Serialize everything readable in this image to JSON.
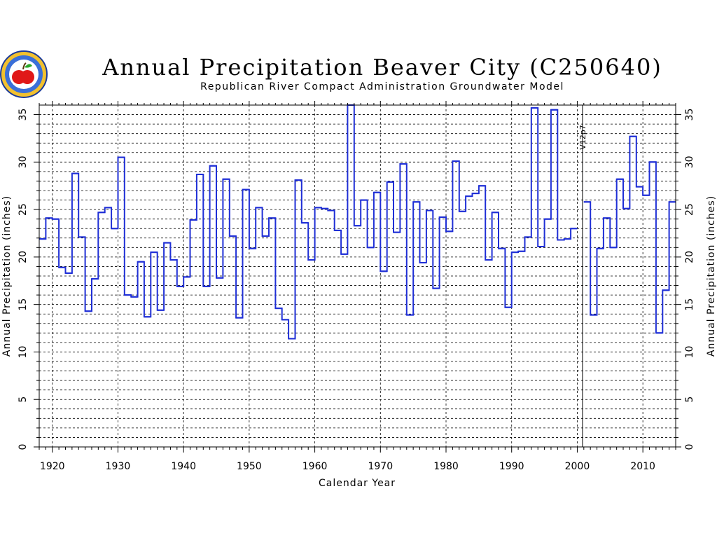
{
  "chart_data": {
    "type": "line",
    "step": true,
    "title": "Annual Precipitation Beaver City (C250640)",
    "subtitle": "Republican River Compact Administration Groundwater Model",
    "xlabel": "Calendar Year",
    "ylabel": "Annual Precipitation (inches)",
    "xlim": [
      1918,
      2015
    ],
    "ylim": [
      0,
      36
    ],
    "x_ticks": [
      1920,
      1930,
      1940,
      1950,
      1960,
      1970,
      1980,
      1990,
      2000,
      2010
    ],
    "y_ticks": [
      0,
      5,
      10,
      15,
      20,
      25,
      30,
      35
    ],
    "grid": true,
    "line_color": "#1f2fd6",
    "vline": {
      "x": 2000.8,
      "label": "V12p7"
    },
    "series": [
      {
        "x": [
          1918,
          1919,
          1920,
          1921,
          1922,
          1923,
          1924,
          1925,
          1926,
          1927,
          1928,
          1929,
          1930,
          1931,
          1932,
          1933,
          1934,
          1935,
          1936,
          1937,
          1938,
          1939,
          1940,
          1941,
          1942,
          1943,
          1944,
          1945,
          1946,
          1947,
          1948,
          1949,
          1950,
          1951,
          1952,
          1953,
          1954,
          1955,
          1956,
          1957,
          1958,
          1959,
          1960,
          1961,
          1962,
          1963,
          1964,
          1965,
          1966,
          1967,
          1968,
          1969,
          1970,
          1971,
          1972,
          1973,
          1974,
          1975,
          1976,
          1977,
          1978,
          1979,
          1980,
          1981,
          1982,
          1983,
          1984,
          1985,
          1986,
          1987,
          1988,
          1989,
          1990,
          1991,
          1992,
          1993,
          1994,
          1995,
          1996,
          1997,
          1998,
          1999,
          2000,
          2001,
          2002,
          2003,
          2004,
          2005,
          2006,
          2007,
          2008,
          2009,
          2010,
          2011,
          2012,
          2013,
          2014
        ],
        "values": [
          21.9,
          24.1,
          24.0,
          18.9,
          18.3,
          28.8,
          22.1,
          14.3,
          17.7,
          24.7,
          25.2,
          23.0,
          30.5,
          16.0,
          15.8,
          19.5,
          13.7,
          20.5,
          14.4,
          21.5,
          19.7,
          16.9,
          17.9,
          23.9,
          28.7,
          16.9,
          29.6,
          17.8,
          28.2,
          22.2,
          13.6,
          27.1,
          20.9,
          25.2,
          22.2,
          24.1,
          14.6,
          13.4,
          11.4,
          28.1,
          23.6,
          19.7,
          25.2,
          25.1,
          24.9,
          22.8,
          20.3,
          36.0,
          23.3,
          26.0,
          21.0,
          26.8,
          18.5,
          27.9,
          22.6,
          29.8,
          13.9,
          25.8,
          19.4,
          24.9,
          16.7,
          24.2,
          22.7,
          30.1,
          24.8,
          26.4,
          26.7,
          27.5,
          19.7,
          24.7,
          20.9,
          14.7,
          20.5,
          20.6,
          22.1,
          35.7,
          21.1,
          24.0,
          35.5,
          21.8,
          21.9,
          23.0,
          null,
          25.8,
          13.9,
          20.9,
          24.1,
          21.0,
          28.2,
          25.1,
          32.7,
          27.4,
          26.5,
          30.0,
          12.0,
          16.5,
          25.8
        ]
      }
    ]
  }
}
